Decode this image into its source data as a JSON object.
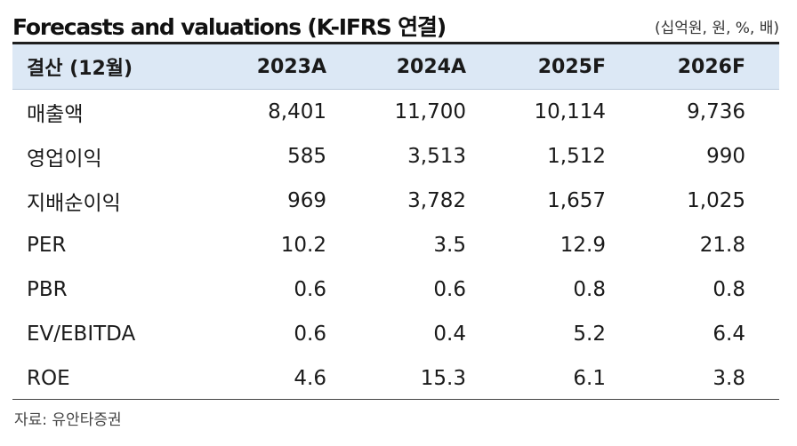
{
  "title": "Forecasts and valuations (K-IFRS 연결)",
  "unit_note": "(십억원, 원, %, 배)",
  "table": {
    "headers": [
      "결산 (12월)",
      "2023A",
      "2024A",
      "2025F",
      "2026F"
    ],
    "rows": [
      {
        "label": "매출액",
        "values": [
          "8,401",
          "11,700",
          "10,114",
          "9,736"
        ]
      },
      {
        "label": "영업이익",
        "values": [
          "585",
          "3,513",
          "1,512",
          "990"
        ]
      },
      {
        "label": "지배순이익",
        "values": [
          "969",
          "3,782",
          "1,657",
          "1,025"
        ]
      },
      {
        "label": "PER",
        "values": [
          "10.2",
          "3.5",
          "12.9",
          "21.8"
        ]
      },
      {
        "label": "PBR",
        "values": [
          "0.6",
          "0.6",
          "0.8",
          "0.8"
        ]
      },
      {
        "label": "EV/EBITDA",
        "values": [
          "0.6",
          "0.4",
          "5.2",
          "6.4"
        ]
      },
      {
        "label": "ROE",
        "values": [
          "4.6",
          "15.3",
          "6.1",
          "3.8"
        ]
      }
    ]
  },
  "source": "자료: 유안타증권",
  "colors": {
    "header_bg": "#dce8f5",
    "rule": "#1f1f1f"
  }
}
